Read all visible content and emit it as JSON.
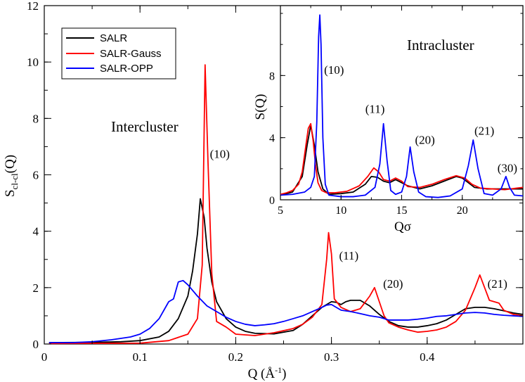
{
  "chart_data": [
    {
      "id": "main",
      "type": "line",
      "title": "",
      "xlabel_main": "Q (",
      "xlabel_unit": "Å",
      "xlabel_exp": "-1",
      "xlabel_close": ")",
      "ylabel_main": "S",
      "ylabel_sub": "cl-cl",
      "ylabel_tail": "(Q)",
      "xlim": [
        0,
        0.5
      ],
      "ylim": [
        0,
        12
      ],
      "xticks": [
        0,
        0.1,
        0.2,
        0.3,
        0.4
      ],
      "xtick_labels": [
        "0",
        "0.1",
        "0.2",
        "0.3",
        "0.4"
      ],
      "yticks": [
        0,
        2,
        4,
        6,
        8,
        10,
        12
      ],
      "ytick_labels": [
        "0",
        "2",
        "4",
        "6",
        "8",
        "10",
        "12"
      ],
      "region_label": "Intercluster",
      "legend": [
        "SALR",
        "SALR-Gauss",
        "SALR-OPP"
      ],
      "annotations": [
        {
          "text": "(10)",
          "x": 0.173,
          "y": 6.6
        },
        {
          "text": "(11)",
          "x": 0.308,
          "y": 3.0
        },
        {
          "text": "(20)",
          "x": 0.354,
          "y": 2.0
        },
        {
          "text": "(21)",
          "x": 0.463,
          "y": 2.0
        }
      ],
      "series": [
        {
          "name": "SALR",
          "color": "#000000",
          "points": [
            [
              0.005,
              0.05
            ],
            [
              0.05,
              0.06
            ],
            [
              0.08,
              0.08
            ],
            [
              0.1,
              0.12
            ],
            [
              0.12,
              0.25
            ],
            [
              0.13,
              0.45
            ],
            [
              0.14,
              0.9
            ],
            [
              0.15,
              1.7
            ],
            [
              0.155,
              2.6
            ],
            [
              0.16,
              3.9
            ],
            [
              0.163,
              5.15
            ],
            [
              0.167,
              4.5
            ],
            [
              0.17,
              3.4
            ],
            [
              0.175,
              2.2
            ],
            [
              0.18,
              1.5
            ],
            [
              0.19,
              0.9
            ],
            [
              0.2,
              0.6
            ],
            [
              0.21,
              0.45
            ],
            [
              0.22,
              0.38
            ],
            [
              0.24,
              0.36
            ],
            [
              0.26,
              0.48
            ],
            [
              0.27,
              0.7
            ],
            [
              0.28,
              1.0
            ],
            [
              0.29,
              1.3
            ],
            [
              0.3,
              1.5
            ],
            [
              0.305,
              1.48
            ],
            [
              0.31,
              1.4
            ],
            [
              0.315,
              1.5
            ],
            [
              0.32,
              1.55
            ],
            [
              0.33,
              1.55
            ],
            [
              0.34,
              1.35
            ],
            [
              0.35,
              1.05
            ],
            [
              0.36,
              0.8
            ],
            [
              0.37,
              0.65
            ],
            [
              0.38,
              0.6
            ],
            [
              0.39,
              0.6
            ],
            [
              0.4,
              0.65
            ],
            [
              0.41,
              0.72
            ],
            [
              0.42,
              0.85
            ],
            [
              0.43,
              1.05
            ],
            [
              0.44,
              1.25
            ],
            [
              0.45,
              1.3
            ],
            [
              0.46,
              1.3
            ],
            [
              0.47,
              1.25
            ],
            [
              0.48,
              1.18
            ],
            [
              0.49,
              1.1
            ],
            [
              0.5,
              1.05
            ]
          ]
        },
        {
          "name": "SALR-Gauss",
          "color": "#ff0000",
          "points": [
            [
              0.005,
              0.02
            ],
            [
              0.1,
              0.03
            ],
            [
              0.13,
              0.12
            ],
            [
              0.15,
              0.35
            ],
            [
              0.16,
              0.9
            ],
            [
              0.165,
              2.8
            ],
            [
              0.168,
              9.9
            ],
            [
              0.171,
              6.5
            ],
            [
              0.175,
              2.5
            ],
            [
              0.18,
              0.8
            ],
            [
              0.185,
              0.7
            ],
            [
              0.19,
              0.6
            ],
            [
              0.2,
              0.35
            ],
            [
              0.22,
              0.3
            ],
            [
              0.24,
              0.4
            ],
            [
              0.26,
              0.55
            ],
            [
              0.27,
              0.7
            ],
            [
              0.28,
              0.95
            ],
            [
              0.29,
              1.4
            ],
            [
              0.295,
              3.0
            ],
            [
              0.297,
              3.95
            ],
            [
              0.3,
              3.2
            ],
            [
              0.303,
              1.6
            ],
            [
              0.31,
              1.3
            ],
            [
              0.32,
              1.15
            ],
            [
              0.33,
              1.25
            ],
            [
              0.34,
              1.7
            ],
            [
              0.345,
              2.0
            ],
            [
              0.35,
              1.5
            ],
            [
              0.355,
              1.0
            ],
            [
              0.36,
              0.75
            ],
            [
              0.37,
              0.6
            ],
            [
              0.38,
              0.5
            ],
            [
              0.39,
              0.42
            ],
            [
              0.4,
              0.45
            ],
            [
              0.41,
              0.5
            ],
            [
              0.42,
              0.6
            ],
            [
              0.43,
              0.8
            ],
            [
              0.44,
              1.2
            ],
            [
              0.445,
              1.6
            ],
            [
              0.45,
              2.0
            ],
            [
              0.455,
              2.45
            ],
            [
              0.46,
              2.0
            ],
            [
              0.465,
              1.55
            ],
            [
              0.47,
              1.5
            ],
            [
              0.475,
              1.45
            ],
            [
              0.48,
              1.2
            ],
            [
              0.49,
              1.05
            ],
            [
              0.5,
              1.0
            ]
          ]
        },
        {
          "name": "SALR-OPP",
          "color": "#0000ff",
          "points": [
            [
              0.005,
              0.05
            ],
            [
              0.03,
              0.05
            ],
            [
              0.05,
              0.08
            ],
            [
              0.07,
              0.15
            ],
            [
              0.09,
              0.25
            ],
            [
              0.1,
              0.35
            ],
            [
              0.11,
              0.55
            ],
            [
              0.12,
              0.9
            ],
            [
              0.13,
              1.5
            ],
            [
              0.135,
              1.6
            ],
            [
              0.14,
              2.2
            ],
            [
              0.145,
              2.25
            ],
            [
              0.15,
              2.1
            ],
            [
              0.16,
              1.7
            ],
            [
              0.17,
              1.35
            ],
            [
              0.18,
              1.15
            ],
            [
              0.19,
              0.95
            ],
            [
              0.2,
              0.8
            ],
            [
              0.21,
              0.7
            ],
            [
              0.22,
              0.65
            ],
            [
              0.23,
              0.68
            ],
            [
              0.24,
              0.72
            ],
            [
              0.25,
              0.8
            ],
            [
              0.26,
              0.9
            ],
            [
              0.27,
              1.0
            ],
            [
              0.28,
              1.15
            ],
            [
              0.29,
              1.3
            ],
            [
              0.295,
              1.38
            ],
            [
              0.3,
              1.4
            ],
            [
              0.31,
              1.2
            ],
            [
              0.32,
              1.15
            ],
            [
              0.33,
              1.08
            ],
            [
              0.34,
              1.0
            ],
            [
              0.35,
              0.95
            ],
            [
              0.36,
              0.85
            ],
            [
              0.37,
              0.85
            ],
            [
              0.38,
              0.85
            ],
            [
              0.39,
              0.88
            ],
            [
              0.4,
              0.92
            ],
            [
              0.41,
              0.98
            ],
            [
              0.42,
              1.0
            ],
            [
              0.43,
              1.05
            ],
            [
              0.44,
              1.1
            ],
            [
              0.45,
              1.12
            ],
            [
              0.46,
              1.1
            ],
            [
              0.47,
              1.05
            ],
            [
              0.48,
              1.02
            ],
            [
              0.49,
              1.0
            ],
            [
              0.5,
              0.98
            ]
          ]
        }
      ]
    },
    {
      "id": "inset",
      "type": "line",
      "title": "",
      "xlabel": "Qσ",
      "ylabel": "S(Q)",
      "xlim": [
        5,
        25
      ],
      "ylim": [
        0,
        12.5
      ],
      "xticks": [
        5,
        10,
        15,
        20
      ],
      "xtick_labels": [
        "5",
        "10",
        "15",
        "20"
      ],
      "yticks": [
        0,
        4,
        8
      ],
      "ytick_labels": [
        "0",
        "4",
        "8"
      ],
      "region_label": "Intracluster",
      "annotations": [
        {
          "text": "(10)",
          "x": 8.6,
          "y": 8.1
        },
        {
          "text": "(11)",
          "x": 12.0,
          "y": 5.6
        },
        {
          "text": "(20)",
          "x": 16.1,
          "y": 3.6
        },
        {
          "text": "(21)",
          "x": 21.0,
          "y": 4.2
        },
        {
          "text": "(30)",
          "x": 22.9,
          "y": 1.8
        }
      ],
      "series": [
        {
          "name": "SALR",
          "color": "#000000",
          "points": [
            [
              5,
              0.3
            ],
            [
              6,
              0.5
            ],
            [
              6.8,
              1.5
            ],
            [
              7.2,
              3.5
            ],
            [
              7.5,
              4.8
            ],
            [
              7.8,
              3.5
            ],
            [
              8.1,
              1.8
            ],
            [
              8.5,
              0.7
            ],
            [
              9,
              0.35
            ],
            [
              10,
              0.4
            ],
            [
              11,
              0.5
            ],
            [
              12,
              1.0
            ],
            [
              12.5,
              1.5
            ],
            [
              13,
              1.45
            ],
            [
              13.5,
              1.2
            ],
            [
              14,
              1.1
            ],
            [
              14.5,
              1.3
            ],
            [
              15,
              1.1
            ],
            [
              15.5,
              0.9
            ],
            [
              16.5,
              0.7
            ],
            [
              17.5,
              0.9
            ],
            [
              18.5,
              1.2
            ],
            [
              19.5,
              1.5
            ],
            [
              20,
              1.4
            ],
            [
              20.5,
              1.1
            ],
            [
              21,
              0.8
            ],
            [
              22,
              0.7
            ],
            [
              23,
              0.7
            ],
            [
              24,
              0.7
            ],
            [
              25,
              0.7
            ]
          ]
        },
        {
          "name": "SALR-Gauss",
          "color": "#ff0000",
          "points": [
            [
              5,
              0.35
            ],
            [
              5.5,
              0.45
            ],
            [
              6,
              0.6
            ],
            [
              6.5,
              1.0
            ],
            [
              6.8,
              1.8
            ],
            [
              7.1,
              3.5
            ],
            [
              7.3,
              4.6
            ],
            [
              7.5,
              4.9
            ],
            [
              7.7,
              3.8
            ],
            [
              7.9,
              2.2
            ],
            [
              8.1,
              1.1
            ],
            [
              8.4,
              0.6
            ],
            [
              8.8,
              0.45
            ],
            [
              9.5,
              0.45
            ],
            [
              10.5,
              0.55
            ],
            [
              11.5,
              0.9
            ],
            [
              12.2,
              1.5
            ],
            [
              12.7,
              2.05
            ],
            [
              13.1,
              1.8
            ],
            [
              13.5,
              1.3
            ],
            [
              14,
              1.2
            ],
            [
              14.5,
              1.4
            ],
            [
              15,
              1.2
            ],
            [
              15.5,
              0.85
            ],
            [
              16.5,
              0.8
            ],
            [
              17.5,
              1.0
            ],
            [
              18.5,
              1.3
            ],
            [
              19.5,
              1.55
            ],
            [
              20.2,
              1.4
            ],
            [
              20.8,
              1.0
            ],
            [
              21.5,
              0.75
            ],
            [
              22.5,
              0.7
            ],
            [
              23.5,
              0.65
            ],
            [
              24.5,
              0.75
            ],
            [
              25,
              0.8
            ]
          ]
        },
        {
          "name": "SALR-OPP",
          "color": "#0000ff",
          "points": [
            [
              5,
              0.3
            ],
            [
              6,
              0.35
            ],
            [
              7,
              0.5
            ],
            [
              7.5,
              0.8
            ],
            [
              7.8,
              1.5
            ],
            [
              8.0,
              5.0
            ],
            [
              8.15,
              10.5
            ],
            [
              8.25,
              11.9
            ],
            [
              8.35,
              10.0
            ],
            [
              8.5,
              4.0
            ],
            [
              8.7,
              1.0
            ],
            [
              9,
              0.3
            ],
            [
              10,
              0.2
            ],
            [
              11,
              0.2
            ],
            [
              12,
              0.3
            ],
            [
              12.8,
              0.8
            ],
            [
              13.2,
              2.3
            ],
            [
              13.5,
              4.9
            ],
            [
              13.8,
              2.5
            ],
            [
              14.1,
              0.6
            ],
            [
              14.5,
              0.35
            ],
            [
              15,
              0.5
            ],
            [
              15.4,
              1.5
            ],
            [
              15.7,
              3.4
            ],
            [
              16.0,
              1.8
            ],
            [
              16.4,
              0.5
            ],
            [
              17,
              0.2
            ],
            [
              18,
              0.15
            ],
            [
              19,
              0.25
            ],
            [
              20,
              0.7
            ],
            [
              20.5,
              2.2
            ],
            [
              20.9,
              3.85
            ],
            [
              21.3,
              2.0
            ],
            [
              21.8,
              0.4
            ],
            [
              22.5,
              0.3
            ],
            [
              23.2,
              0.7
            ],
            [
              23.6,
              1.5
            ],
            [
              23.9,
              0.8
            ],
            [
              24.3,
              0.3
            ],
            [
              25,
              0.25
            ]
          ]
        }
      ]
    }
  ]
}
